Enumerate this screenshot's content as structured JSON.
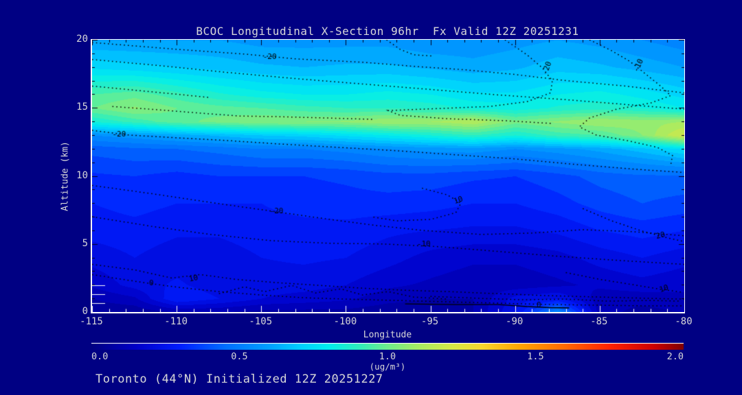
{
  "title": "BCOC Longitudinal X-Section 96hr  Fx Valid 12Z 20251231",
  "caption": "Toronto (44°N) Initialized 12Z 20251227",
  "colors": {
    "background": "#000083",
    "label_text": "#D8D8D8",
    "axis_box": "#FFFFFF",
    "contour_line": "#000000",
    "bottom_ticks": "#FFFFFF",
    "inner_ticks": "#000020"
  },
  "chart_data": {
    "type": "heatmap",
    "title": "BCOC Longitudinal X-Section 96hr  Fx Valid 12Z 20251231",
    "xlabel": "Longitude",
    "ylabel": "Altitude (km)",
    "xlim": [
      -115,
      -80
    ],
    "ylim": [
      0,
      20
    ],
    "xticks": [
      -115,
      -110,
      -105,
      -100,
      -95,
      -90,
      -85,
      -80
    ],
    "yticks": [
      0,
      5,
      10,
      15,
      20
    ],
    "x_minor_step": 1,
    "y_minor_step": 1,
    "grid_lons": [
      -115,
      -112.5,
      -110,
      -107.5,
      -105,
      -102.5,
      -100,
      -97.5,
      -95,
      -92.5,
      -90,
      -87.5,
      -85,
      -82.5,
      -80
    ],
    "grid_alts": [
      20,
      18,
      16,
      15,
      14,
      13,
      12,
      10,
      8,
      6,
      4,
      2,
      1,
      0
    ],
    "values": [
      [
        0.6,
        0.6,
        0.6,
        0.6,
        0.58,
        0.58,
        0.58,
        0.58,
        0.56,
        0.56,
        0.58,
        0.6,
        0.58,
        0.55,
        0.52
      ],
      [
        0.74,
        0.72,
        0.7,
        0.68,
        0.66,
        0.65,
        0.66,
        0.66,
        0.64,
        0.62,
        0.64,
        0.68,
        0.66,
        0.63,
        0.6
      ],
      [
        0.95,
        0.98,
        0.92,
        0.86,
        0.82,
        0.8,
        0.8,
        0.82,
        0.8,
        0.76,
        0.76,
        0.8,
        0.82,
        0.78,
        0.73
      ],
      [
        1.0,
        1.06,
        1.0,
        0.97,
        0.95,
        0.92,
        0.9,
        0.9,
        0.88,
        0.84,
        0.82,
        0.86,
        0.88,
        0.85,
        0.8
      ],
      [
        0.85,
        0.92,
        0.98,
        1.02,
        1.05,
        1.05,
        1.06,
        1.1,
        1.1,
        1.15,
        1.02,
        1.06,
        1.1,
        1.08,
        1.1
      ],
      [
        0.55,
        0.58,
        0.62,
        0.66,
        0.7,
        0.72,
        0.76,
        0.8,
        0.85,
        0.9,
        0.85,
        0.92,
        0.95,
        1.05,
        1.22
      ],
      [
        0.42,
        0.44,
        0.45,
        0.47,
        0.5,
        0.5,
        0.52,
        0.55,
        0.57,
        0.58,
        0.55,
        0.58,
        0.62,
        0.68,
        0.76
      ],
      [
        0.34,
        0.35,
        0.33,
        0.35,
        0.35,
        0.35,
        0.36,
        0.38,
        0.38,
        0.36,
        0.35,
        0.38,
        0.42,
        0.44,
        0.44
      ],
      [
        0.3,
        0.32,
        0.3,
        0.3,
        0.3,
        0.32,
        0.33,
        0.33,
        0.32,
        0.3,
        0.3,
        0.33,
        0.37,
        0.4,
        0.38
      ],
      [
        0.27,
        0.28,
        0.26,
        0.26,
        0.28,
        0.28,
        0.28,
        0.26,
        0.25,
        0.24,
        0.24,
        0.26,
        0.3,
        0.32,
        0.3
      ],
      [
        0.22,
        0.25,
        0.22,
        0.22,
        0.25,
        0.26,
        0.25,
        0.22,
        0.18,
        0.16,
        0.16,
        0.18,
        0.22,
        0.25,
        0.22
      ],
      [
        0.16,
        0.22,
        0.26,
        0.22,
        0.22,
        0.22,
        0.2,
        0.16,
        0.14,
        0.12,
        0.12,
        0.14,
        0.16,
        0.18,
        0.16
      ],
      [
        0.1,
        0.14,
        0.3,
        0.25,
        0.2,
        0.18,
        0.16,
        0.12,
        0.1,
        0.1,
        0.22,
        0.25,
        0.12,
        0.12,
        0.14
      ],
      [
        0.06,
        0.06,
        0.1,
        0.1,
        0.08,
        0.08,
        0.08,
        0.06,
        0.06,
        0.1,
        0.25,
        0.55,
        0.12,
        0.08,
        0.1
      ]
    ],
    "level_step": 0.05,
    "surface_ticks_alt": [
      0.65,
      1.3,
      1.95
    ],
    "contour_lines": [
      {
        "label": "-20",
        "label_pos": [
          -104.5,
          18.75
        ],
        "angle": 0,
        "style": "dotted",
        "points": [
          [
            -115,
            19.8
          ],
          [
            -110,
            19.3
          ],
          [
            -106,
            18.95
          ],
          [
            -103,
            18.6
          ],
          [
            -99,
            18.35
          ],
          [
            -96,
            18.05
          ],
          [
            -93,
            17.8
          ],
          [
            -90,
            17.45
          ],
          [
            -87,
            17.0
          ],
          [
            -83.5,
            16.6
          ],
          [
            -80,
            16.1
          ]
        ]
      },
      {
        "label": "",
        "style": "dotted",
        "points": [
          [
            -115,
            18.55
          ],
          [
            -111,
            18.1
          ],
          [
            -107,
            17.6
          ],
          [
            -103,
            17.15
          ],
          [
            -99,
            16.75
          ],
          [
            -95,
            16.35
          ],
          [
            -91,
            15.95
          ],
          [
            -87,
            15.6
          ],
          [
            -83,
            15.2
          ],
          [
            -80,
            14.9
          ]
        ]
      },
      {
        "label": "-20",
        "label_pos": [
          -88.1,
          17.9
        ],
        "angle": -70,
        "style": "dotted",
        "points": [
          [
            -90.6,
            20
          ],
          [
            -89.3,
            18.9
          ],
          [
            -88.4,
            17.95
          ],
          [
            -87.8,
            17.0
          ],
          [
            -87.9,
            16.1
          ],
          [
            -89.3,
            15.45
          ],
          [
            -91.5,
            15.1
          ],
          [
            -94.5,
            14.95
          ],
          [
            -97.5,
            14.8
          ],
          [
            -96.8,
            14.45
          ],
          [
            -94,
            14.2
          ],
          [
            -90.5,
            14.05
          ],
          [
            -87.8,
            13.85
          ]
        ]
      },
      {
        "label": "-10",
        "label_pos": [
          -82.7,
          18.1
        ],
        "angle": -65,
        "style": "dotted",
        "points": [
          [
            -85.6,
            20
          ],
          [
            -84.3,
            19.2
          ],
          [
            -83.2,
            18.4
          ],
          [
            -82.3,
            17.5
          ],
          [
            -81.4,
            16.6
          ],
          [
            -80.8,
            15.9
          ],
          [
            -82,
            15.35
          ],
          [
            -84,
            14.9
          ],
          [
            -85.6,
            14.25
          ],
          [
            -86.2,
            13.6
          ],
          [
            -85.2,
            13.0
          ],
          [
            -83.4,
            12.6
          ],
          [
            -81.6,
            12.1
          ],
          [
            -80.7,
            11.5
          ],
          [
            -80.8,
            10.8
          ]
        ]
      },
      {
        "label": "",
        "style": "dotted",
        "points": [
          [
            -115,
            16.6
          ],
          [
            -112.5,
            16.3
          ],
          [
            -110,
            16.0
          ],
          [
            -108,
            15.75
          ]
        ]
      },
      {
        "label": "",
        "style": "dotted",
        "points": [
          [
            -113.8,
            15.1
          ],
          [
            -111,
            14.85
          ],
          [
            -108.5,
            14.6
          ],
          [
            -106.3,
            14.4
          ],
          [
            -104,
            14.35
          ],
          [
            -101,
            14.25
          ],
          [
            -98.3,
            14.15
          ]
        ]
      },
      {
        "label": "",
        "style": "dotted",
        "points": [
          [
            -97.6,
            20
          ],
          [
            -96.8,
            19.3
          ],
          [
            -96,
            18.9
          ],
          [
            -94.8,
            18.8
          ]
        ]
      },
      {
        "label": "-20",
        "label_pos": [
          -113.4,
          13.05
        ],
        "angle": 0,
        "style": "dotted",
        "points": [
          [
            -115,
            13.35
          ],
          [
            -112.8,
            13.0
          ],
          [
            -110,
            12.8
          ],
          [
            -107,
            12.6
          ],
          [
            -104,
            12.35
          ],
          [
            -100.5,
            12.1
          ],
          [
            -97,
            11.85
          ],
          [
            -93.5,
            11.55
          ],
          [
            -90,
            11.25
          ],
          [
            -86.5,
            10.85
          ],
          [
            -83,
            10.5
          ],
          [
            -80,
            10.25
          ]
        ]
      },
      {
        "label": "-20",
        "label_pos": [
          -104.1,
          7.4
        ],
        "angle": 0,
        "style": "dotted",
        "points": [
          [
            -115,
            9.3
          ],
          [
            -111.5,
            8.7
          ],
          [
            -108,
            8.05
          ],
          [
            -104.6,
            7.45
          ],
          [
            -101.5,
            6.9
          ],
          [
            -98.5,
            6.4
          ],
          [
            -95.5,
            6.0
          ],
          [
            -92,
            5.7
          ],
          [
            -89,
            5.8
          ],
          [
            -86,
            6.05
          ],
          [
            -83,
            5.9
          ],
          [
            -80,
            5.6
          ]
        ]
      },
      {
        "label": "-10",
        "label_pos": [
          -95.4,
          5.0
        ],
        "angle": 0,
        "style": "dotted",
        "points": [
          [
            -115,
            7.0
          ],
          [
            -111.5,
            6.3
          ],
          [
            -108,
            5.7
          ],
          [
            -104.5,
            5.25
          ],
          [
            -101,
            5.05
          ],
          [
            -97.8,
            5.0
          ],
          [
            -94.5,
            4.8
          ],
          [
            -91,
            4.45
          ],
          [
            -87.5,
            4.1
          ],
          [
            -84,
            3.8
          ],
          [
            -80,
            3.5
          ]
        ]
      },
      {
        "label": "10",
        "label_pos": [
          -93.35,
          8.2
        ],
        "angle": -20,
        "style": "dotted",
        "points": [
          [
            -95.5,
            9.1
          ],
          [
            -94,
            8.6
          ],
          [
            -93.2,
            8.0
          ],
          [
            -93.5,
            7.3
          ],
          [
            -95,
            6.8
          ],
          [
            -97,
            6.7
          ],
          [
            -98.5,
            7.0
          ]
        ]
      },
      {
        "label": "20",
        "label_pos": [
          -81.4,
          5.6
        ],
        "angle": -15,
        "style": "dotted",
        "points": [
          [
            -86,
            7.6
          ],
          [
            -84.3,
            6.7
          ],
          [
            -82.5,
            5.95
          ],
          [
            -81,
            5.45
          ],
          [
            -80.1,
            5.2
          ]
        ]
      },
      {
        "label": "10",
        "label_pos": [
          -109,
          2.45
        ],
        "angle": -15,
        "style": "dotted",
        "points": [
          [
            -115,
            3.5
          ],
          [
            -112.5,
            3.1
          ],
          [
            -110.3,
            2.5
          ],
          [
            -108.6,
            2.75
          ],
          [
            -106.5,
            2.4
          ],
          [
            -104,
            2.15
          ],
          [
            -101.5,
            1.95
          ],
          [
            -99,
            1.75
          ],
          [
            -96.5,
            1.6
          ],
          [
            -94,
            1.5
          ],
          [
            -91,
            1.35
          ],
          [
            -88,
            1.2
          ],
          [
            -85,
            1.1
          ],
          [
            -82,
            1.0
          ],
          [
            -80,
            0.95
          ]
        ]
      },
      {
        "label": "0",
        "label_pos": [
          -111.5,
          2.1
        ],
        "angle": 0,
        "style": "dotted",
        "points": [
          [
            -115,
            2.75
          ],
          [
            -113.2,
            2.4
          ],
          [
            -111.6,
            2.1
          ],
          [
            -109.8,
            1.8
          ],
          [
            -107.5,
            1.5
          ],
          [
            -105,
            1.25
          ],
          [
            -102.5,
            1.05
          ],
          [
            -100,
            0.95
          ],
          [
            -97,
            0.85
          ],
          [
            -94,
            0.75
          ],
          [
            -91,
            0.65
          ],
          [
            -88,
            0.55
          ],
          [
            -85,
            0.5
          ],
          [
            -82,
            0.45
          ],
          [
            -80,
            0.45
          ]
        ]
      },
      {
        "label": "10",
        "label_pos": [
          -81.2,
          1.7
        ],
        "angle": -20,
        "style": "dotted",
        "points": [
          [
            -87,
            2.9
          ],
          [
            -85,
            2.4
          ],
          [
            -83,
            2.0
          ],
          [
            -81.3,
            1.65
          ],
          [
            -80.1,
            1.45
          ]
        ]
      },
      {
        "label": "0",
        "label_pos": [
          -88.6,
          0.5
        ],
        "angle": 0,
        "style": "solid",
        "points": [
          [
            -96.5,
            0.6
          ],
          [
            -93.5,
            0.55
          ],
          [
            -91,
            0.55
          ],
          [
            -89.3,
            0.4
          ],
          [
            -88,
            0.33
          ],
          [
            -86.8,
            0.3
          ]
        ]
      },
      {
        "label": "",
        "style": "dotted",
        "points": [
          [
            -107.5,
            1.35
          ],
          [
            -106,
            1.85
          ],
          [
            -104.8,
            1.5
          ],
          [
            -103.2,
            1.95
          ],
          [
            -101.8,
            1.4
          ],
          [
            -100.3,
            1.7
          ],
          [
            -99,
            1.25
          ],
          [
            -97.5,
            1.5
          ],
          [
            -96,
            1.1
          ],
          [
            -94,
            0.95
          ]
        ]
      },
      {
        "label": "",
        "style": "dotted",
        "points": [
          [
            -95,
            1.15
          ],
          [
            -92,
            1.0
          ],
          [
            -89.5,
            0.9
          ],
          [
            -87,
            0.95
          ],
          [
            -84.5,
            0.8
          ],
          [
            -82,
            0.85
          ],
          [
            -80.2,
            0.8
          ]
        ]
      }
    ],
    "colorbar": {
      "min": 0.0,
      "max": 2.0,
      "ticks": [
        "0.0",
        "0.5",
        "1.0",
        "1.5",
        "2.0"
      ],
      "unit": "(ug/m³)",
      "stops": [
        [
          0.0,
          [
            0,
            0,
            130
          ]
        ],
        [
          0.15,
          [
            0,
            0,
            200
          ]
        ],
        [
          0.3,
          [
            0,
            30,
            255
          ]
        ],
        [
          0.45,
          [
            0,
            110,
            255
          ]
        ],
        [
          0.6,
          [
            0,
            160,
            255
          ]
        ],
        [
          0.7,
          [
            0,
            205,
            255
          ]
        ],
        [
          0.8,
          [
            0,
            238,
            238
          ]
        ],
        [
          0.9,
          [
            45,
            238,
            190
          ]
        ],
        [
          1.0,
          [
            110,
            238,
            140
          ]
        ],
        [
          1.1,
          [
            165,
            235,
            100
          ]
        ],
        [
          1.22,
          [
            215,
            232,
            70
          ]
        ],
        [
          1.32,
          [
            248,
            215,
            45
          ]
        ],
        [
          1.45,
          [
            255,
            165,
            0
          ]
        ],
        [
          1.6,
          [
            255,
            105,
            0
          ]
        ],
        [
          1.75,
          [
            255,
            35,
            0
          ]
        ],
        [
          1.9,
          [
            205,
            0,
            0
          ]
        ],
        [
          2.0,
          [
            128,
            0,
            0
          ]
        ]
      ]
    }
  }
}
